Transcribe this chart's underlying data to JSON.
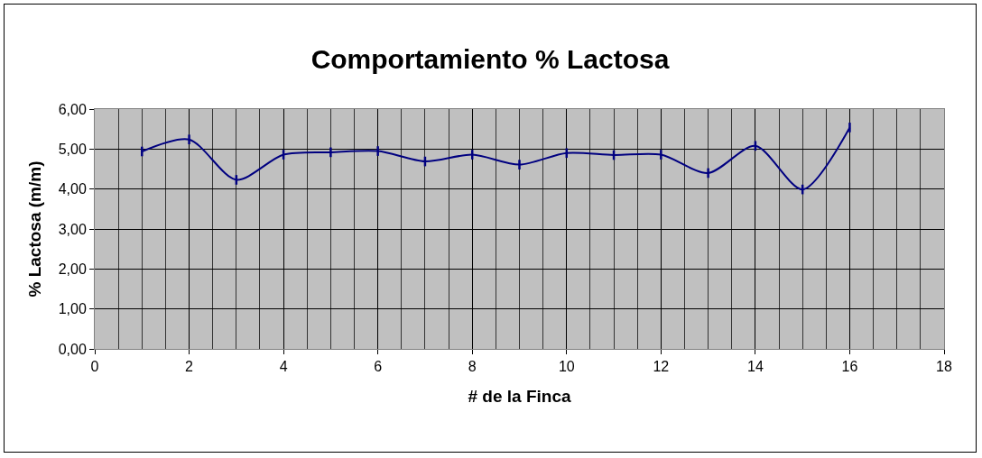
{
  "chart_data": {
    "type": "line",
    "title": "Comportamiento % Lactosa",
    "xlabel": "# de la Finca",
    "ylabel": "% Lactosa (m/m)",
    "x": [
      1,
      2,
      3,
      4,
      5,
      6,
      7,
      8,
      9,
      10,
      11,
      12,
      13,
      14,
      15,
      16
    ],
    "series": [
      {
        "color": "#000080",
        "values": [
          4.94,
          5.24,
          4.23,
          4.86,
          4.92,
          4.95,
          4.69,
          4.86,
          4.61,
          4.9,
          4.85,
          4.86,
          4.4,
          5.08,
          3.99,
          5.54
        ],
        "errors": [
          0.12,
          0.12,
          0.12,
          0.12,
          0.12,
          0.12,
          0.12,
          0.12,
          0.12,
          0.12,
          0.12,
          0.12,
          0.12,
          0.12,
          0.12,
          0.12
        ]
      }
    ],
    "xlim": [
      0,
      18
    ],
    "xticks": [
      0,
      2,
      4,
      6,
      8,
      10,
      12,
      14,
      16,
      18
    ],
    "ylim": [
      0,
      6
    ],
    "yticks": [
      {
        "value": 0,
        "label": "0,00"
      },
      {
        "value": 1,
        "label": "1,00"
      },
      {
        "value": 2,
        "label": "2,00"
      },
      {
        "value": 3,
        "label": "3,00"
      },
      {
        "value": 4,
        "label": "4,00"
      },
      {
        "value": 5,
        "label": "5,00"
      },
      {
        "value": 6,
        "label": "6,00"
      }
    ],
    "grid": true,
    "line_style": "solid"
  }
}
